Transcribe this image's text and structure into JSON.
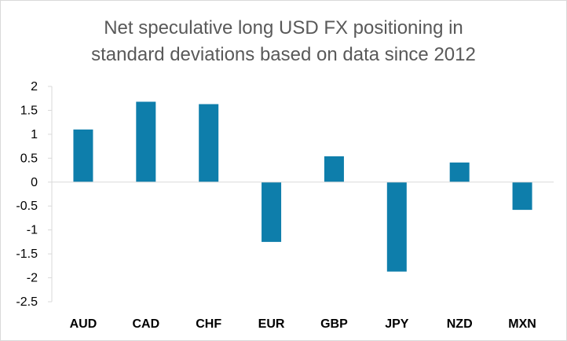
{
  "chart_data": {
    "type": "bar",
    "title_lines": [
      "Net speculative long USD FX positioning in",
      "standard deviations based on data since 2012"
    ],
    "categories": [
      "AUD",
      "CAD",
      "CHF",
      "EUR",
      "GBP",
      "JPY",
      "NZD",
      "MXN"
    ],
    "values": [
      1.1,
      1.68,
      1.63,
      -1.25,
      0.54,
      -1.87,
      0.41,
      -0.58
    ],
    "ylim": [
      -2.5,
      2
    ],
    "yticks": [
      "2",
      "1.5",
      "1",
      "0.5",
      "0",
      "-0.5",
      "-1",
      "-1.5",
      "-2",
      "-2.5"
    ],
    "ytick_values": [
      2,
      1.5,
      1,
      0.5,
      0,
      -0.5,
      -1,
      -1.5,
      -2,
      -2.5
    ],
    "xlabel": "",
    "ylabel": "",
    "grid": false,
    "legend": "none",
    "bar_color": "#0e7eab",
    "axis_color": "#d9d9d9"
  }
}
